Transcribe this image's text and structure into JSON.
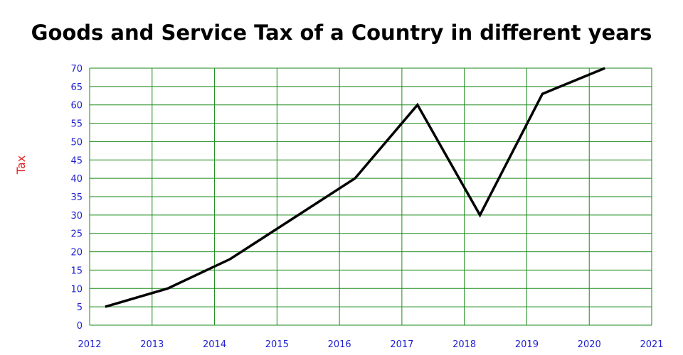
{
  "chart_data": {
    "type": "line",
    "title": "Goods and Service Tax of a Country in different years",
    "ylabel": "Tax",
    "xlabel": "",
    "x": [
      2012.25,
      2013.25,
      2014.25,
      2015.25,
      2016.25,
      2017.25,
      2018.25,
      2019.25,
      2020.25
    ],
    "values": [
      5,
      10,
      18,
      29,
      40,
      60,
      30,
      63,
      70
    ],
    "xlim": [
      2012,
      2021
    ],
    "ylim": [
      0,
      70
    ],
    "x_ticks": [
      "2012",
      "2013",
      "2014",
      "2015",
      "2016",
      "2017",
      "2018",
      "2019",
      "2020",
      "2021"
    ],
    "y_ticks": [
      "0",
      "5",
      "10",
      "15",
      "20",
      "25",
      "30",
      "35",
      "40",
      "45",
      "50",
      "55",
      "60",
      "65",
      "70"
    ],
    "grid": true,
    "legend": "none"
  },
  "colors": {
    "grid": "#1a8a1a",
    "tick_text": "#2020d0",
    "ylabel": "#e02020",
    "line": "#000000"
  }
}
